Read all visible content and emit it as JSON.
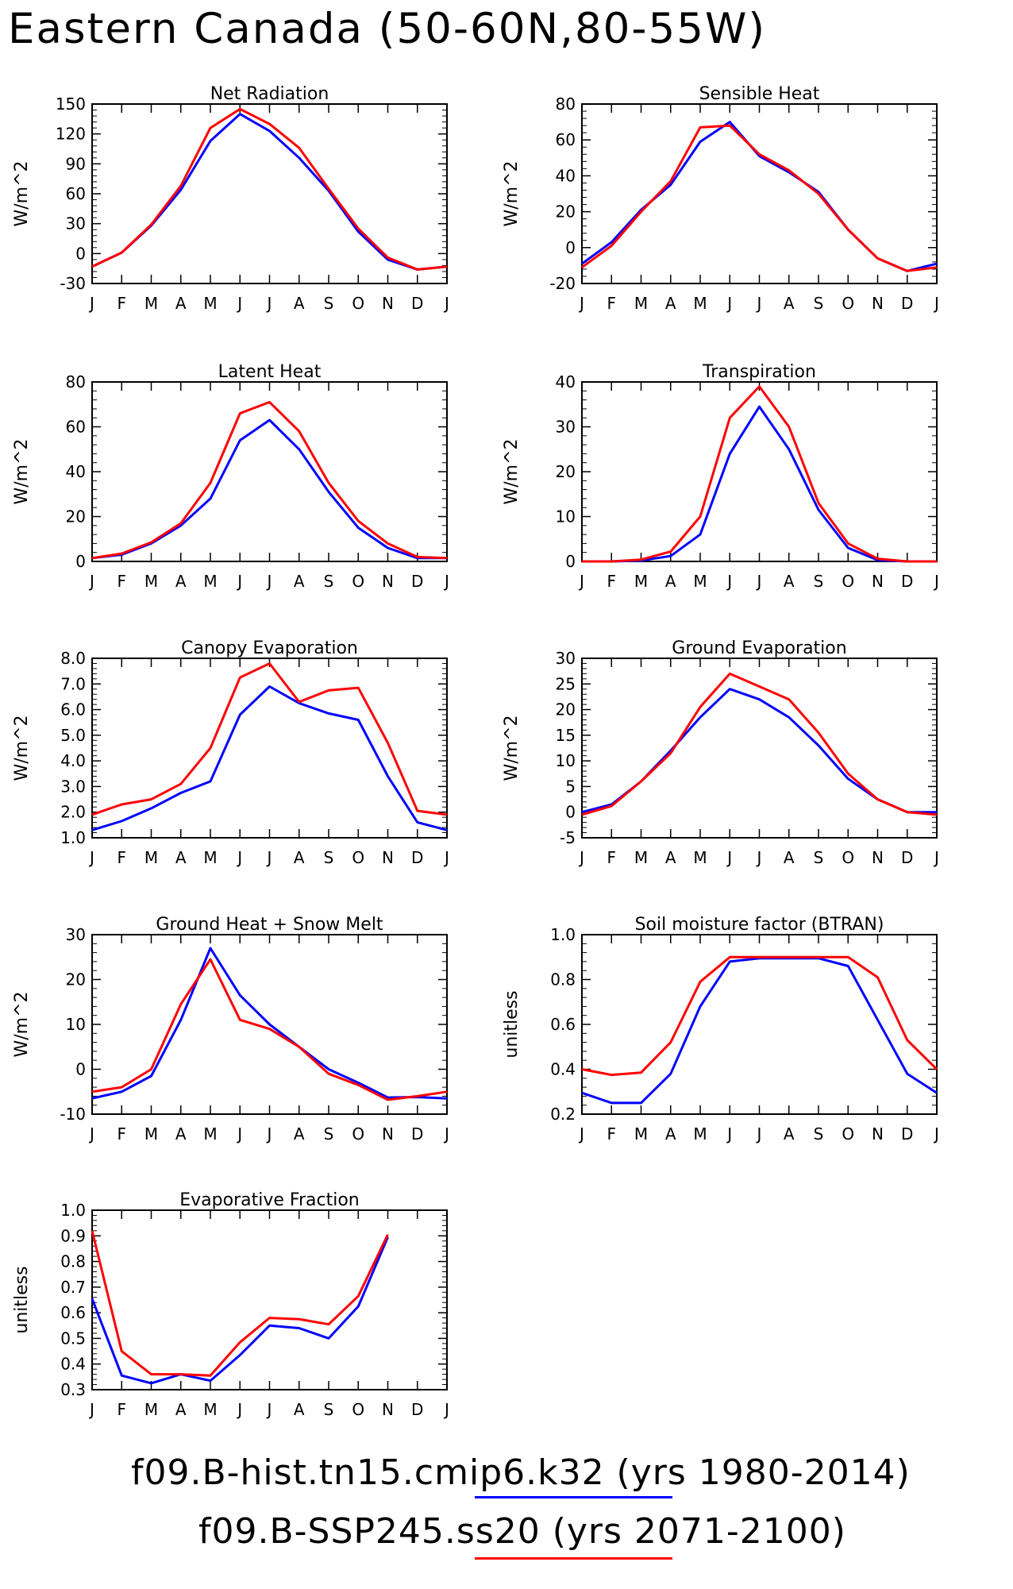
{
  "title": "Eastern Canada (50-60N,80-55W)",
  "months": [
    "J",
    "F",
    "M",
    "A",
    "M",
    "J",
    "J",
    "A",
    "S",
    "O",
    "N",
    "D",
    "J"
  ],
  "legend": [
    {
      "label": "f09.B-hist.tn15.cmip6.k32 (yrs 1980-2014)",
      "color": "#0000ff"
    },
    {
      "label": "f09.B-SSP245.ss20 (yrs 2071-2100)",
      "color": "#ff0000"
    }
  ],
  "chart_data": [
    {
      "type": "line",
      "title": "Net Radiation",
      "ylabel": "W/m^2",
      "ylim": [
        -30,
        150
      ],
      "yticks": [
        {
          "v": -30,
          "l": "-30"
        },
        {
          "v": 0,
          "l": "0"
        },
        {
          "v": 30,
          "l": "30"
        },
        {
          "v": 60,
          "l": "60"
        },
        {
          "v": 90,
          "l": "90"
        },
        {
          "v": 120,
          "l": "120"
        },
        {
          "v": 150,
          "l": "150"
        }
      ],
      "series": [
        {
          "name": "f09.B-hist.tn15.cmip6.k32 (yrs 1980-2014)",
          "color": "#0000ff",
          "values": [
            -13,
            1,
            28,
            64,
            113,
            140,
            123,
            96,
            63,
            22,
            -6,
            -16,
            -13
          ]
        },
        {
          "name": "f09.B-SSP245.ss20 (yrs 2071-2100)",
          "color": "#ff0000",
          "values": [
            -13,
            1,
            29,
            68,
            126,
            145,
            130,
            106,
            65,
            25,
            -4,
            -16,
            -13
          ]
        }
      ]
    },
    {
      "type": "line",
      "title": "Sensible Heat",
      "ylabel": "W/m^2",
      "ylim": [
        -20,
        80
      ],
      "yticks": [
        {
          "v": -20,
          "l": "-20"
        },
        {
          "v": 0,
          "l": "0"
        },
        {
          "v": 20,
          "l": "20"
        },
        {
          "v": 40,
          "l": "40"
        },
        {
          "v": 60,
          "l": "60"
        },
        {
          "v": 80,
          "l": "80"
        }
      ],
      "series": [
        {
          "name": "f09.B-hist.tn15.cmip6.k32 (yrs 1980-2014)",
          "color": "#0000ff",
          "values": [
            -9,
            3,
            21,
            35,
            59,
            70,
            51,
            42,
            31,
            10,
            -6,
            -13,
            -9
          ]
        },
        {
          "name": "f09.B-SSP245.ss20 (yrs 2071-2100)",
          "color": "#ff0000",
          "values": [
            -11,
            1,
            20,
            37,
            67,
            68,
            52,
            43,
            30,
            10,
            -6,
            -13,
            -11
          ]
        }
      ]
    },
    {
      "type": "line",
      "title": "Latent Heat",
      "ylabel": "W/m^2",
      "ylim": [
        0,
        80
      ],
      "yticks": [
        {
          "v": 0,
          "l": "0"
        },
        {
          "v": 20,
          "l": "20"
        },
        {
          "v": 40,
          "l": "40"
        },
        {
          "v": 60,
          "l": "60"
        },
        {
          "v": 80,
          "l": "80"
        }
      ],
      "series": [
        {
          "name": "f09.B-hist.tn15.cmip6.k32 (yrs 1980-2014)",
          "color": "#0000ff",
          "values": [
            1.5,
            3,
            8,
            16,
            28,
            54,
            63,
            50,
            31,
            15,
            6,
            1.5,
            1.5
          ]
        },
        {
          "name": "f09.B-SSP245.ss20 (yrs 2071-2100)",
          "color": "#ff0000",
          "values": [
            1.5,
            3.5,
            8.5,
            17,
            35,
            66,
            71,
            58,
            35,
            18,
            8,
            2,
            1.5
          ]
        }
      ]
    },
    {
      "type": "line",
      "title": "Transpiration",
      "ylabel": "W/m^2",
      "ylim": [
        0,
        40
      ],
      "yticks": [
        {
          "v": 0,
          "l": "0"
        },
        {
          "v": 10,
          "l": "10"
        },
        {
          "v": 20,
          "l": "20"
        },
        {
          "v": 30,
          "l": "30"
        },
        {
          "v": 40,
          "l": "40"
        }
      ],
      "series": [
        {
          "name": "f09.B-hist.tn15.cmip6.k32 (yrs 1980-2014)",
          "color": "#0000ff",
          "values": [
            0,
            0,
            0.2,
            1.2,
            6,
            24,
            34.5,
            25,
            11.5,
            3,
            0.3,
            0,
            0
          ]
        },
        {
          "name": "f09.B-SSP245.ss20 (yrs 2071-2100)",
          "color": "#ff0000",
          "values": [
            0,
            0,
            0.4,
            2.2,
            10,
            32,
            39,
            30,
            13,
            4,
            0.6,
            0,
            0
          ]
        }
      ]
    },
    {
      "type": "line",
      "title": "Canopy Evaporation",
      "ylabel": "W/m^2",
      "ylim": [
        1.0,
        8.0
      ],
      "yticks": [
        {
          "v": 1,
          "l": "1.0"
        },
        {
          "v": 2,
          "l": "2.0"
        },
        {
          "v": 3,
          "l": "3.0"
        },
        {
          "v": 4,
          "l": "4.0"
        },
        {
          "v": 5,
          "l": "5.0"
        },
        {
          "v": 6,
          "l": "6.0"
        },
        {
          "v": 7,
          "l": "7.0"
        },
        {
          "v": 8,
          "l": "8.0"
        }
      ],
      "series": [
        {
          "name": "f09.B-hist.tn15.cmip6.k32 (yrs 1980-2014)",
          "color": "#0000ff",
          "values": [
            1.3,
            1.65,
            2.15,
            2.75,
            3.2,
            5.8,
            6.9,
            6.25,
            5.85,
            5.6,
            3.4,
            1.6,
            1.3
          ]
        },
        {
          "name": "f09.B-SSP245.ss20 (yrs 2071-2100)",
          "color": "#ff0000",
          "values": [
            1.9,
            2.3,
            2.5,
            3.1,
            4.5,
            7.25,
            7.8,
            6.3,
            6.75,
            6.85,
            4.7,
            2.05,
            1.9
          ]
        }
      ]
    },
    {
      "type": "line",
      "title": "Ground Evaporation",
      "ylabel": "W/m^2",
      "ylim": [
        -5,
        30
      ],
      "yticks": [
        {
          "v": -5,
          "l": "-5"
        },
        {
          "v": 0,
          "l": "0"
        },
        {
          "v": 5,
          "l": "5"
        },
        {
          "v": 10,
          "l": "10"
        },
        {
          "v": 15,
          "l": "15"
        },
        {
          "v": 20,
          "l": "20"
        },
        {
          "v": 25,
          "l": "25"
        },
        {
          "v": 30,
          "l": "30"
        }
      ],
      "series": [
        {
          "name": "f09.B-hist.tn15.cmip6.k32 (yrs 1980-2014)",
          "color": "#0000ff",
          "values": [
            0,
            1.5,
            6,
            12,
            18.5,
            24,
            22,
            18.5,
            13,
            6.5,
            2.5,
            0,
            0
          ]
        },
        {
          "name": "f09.B-SSP245.ss20 (yrs 2071-2100)",
          "color": "#ff0000",
          "values": [
            -0.5,
            1.2,
            6,
            11.5,
            20.5,
            27,
            24.5,
            22,
            15.5,
            7.5,
            2.5,
            0,
            -0.5
          ]
        }
      ]
    },
    {
      "type": "line",
      "title": "Ground Heat + Snow Melt",
      "ylabel": "W/m^2",
      "ylim": [
        -10,
        30
      ],
      "yticks": [
        {
          "v": -10,
          "l": "-10"
        },
        {
          "v": 0,
          "l": "0"
        },
        {
          "v": 10,
          "l": "10"
        },
        {
          "v": 20,
          "l": "20"
        },
        {
          "v": 30,
          "l": "30"
        }
      ],
      "series": [
        {
          "name": "f09.B-hist.tn15.cmip6.k32 (yrs 1980-2014)",
          "color": "#0000ff",
          "values": [
            -6.5,
            -5,
            -1.5,
            11,
            27,
            16.5,
            10,
            5,
            0,
            -3,
            -6.3,
            -6.2,
            -6.5
          ]
        },
        {
          "name": "f09.B-SSP245.ss20 (yrs 2071-2100)",
          "color": "#ff0000",
          "values": [
            -5,
            -4,
            0,
            14.5,
            24.5,
            11,
            9,
            5,
            -1,
            -3.5,
            -6.8,
            -6,
            -5
          ]
        }
      ]
    },
    {
      "type": "line",
      "title": "Soil moisture factor (BTRAN)",
      "ylabel": "unitless",
      "ylim": [
        0.2,
        1.0
      ],
      "yticks": [
        {
          "v": 0.2,
          "l": "0.2"
        },
        {
          "v": 0.4,
          "l": "0.4"
        },
        {
          "v": 0.6,
          "l": "0.6"
        },
        {
          "v": 0.8,
          "l": "0.8"
        },
        {
          "v": 1.0,
          "l": "1.0"
        }
      ],
      "series": [
        {
          "name": "f09.B-hist.tn15.cmip6.k32 (yrs 1980-2014)",
          "color": "#0000ff",
          "values": [
            0.295,
            0.25,
            0.25,
            0.38,
            0.68,
            0.88,
            0.895,
            0.895,
            0.895,
            0.86,
            0.62,
            0.38,
            0.295
          ]
        },
        {
          "name": "f09.B-SSP245.ss20 (yrs 2071-2100)",
          "color": "#ff0000",
          "values": [
            0.4,
            0.375,
            0.385,
            0.52,
            0.79,
            0.9,
            0.9,
            0.9,
            0.9,
            0.9,
            0.81,
            0.53,
            0.4
          ]
        }
      ]
    },
    {
      "type": "line",
      "title": "Evaporative Fraction",
      "ylabel": "unitless",
      "ylim": [
        0.3,
        1.0
      ],
      "yticks": [
        {
          "v": 0.3,
          "l": "0.3"
        },
        {
          "v": 0.4,
          "l": "0.4"
        },
        {
          "v": 0.5,
          "l": "0.5"
        },
        {
          "v": 0.6,
          "l": "0.6"
        },
        {
          "v": 0.7,
          "l": "0.7"
        },
        {
          "v": 0.8,
          "l": "0.8"
        },
        {
          "v": 0.9,
          "l": "0.9"
        },
        {
          "v": 1.0,
          "l": "1.0"
        }
      ],
      "series": [
        {
          "name": "f09.B-hist.tn15.cmip6.k32 (yrs 1980-2014)",
          "color": "#0000ff",
          "values": [
            0.655,
            0.355,
            0.325,
            0.36,
            0.335,
            0.435,
            0.55,
            0.54,
            0.5,
            0.625,
            0.895,
            null,
            null
          ]
        },
        {
          "name": "f09.B-SSP245.ss20 (yrs 2071-2100)",
          "color": "#ff0000",
          "values": [
            0.92,
            0.45,
            0.36,
            0.36,
            0.355,
            0.485,
            0.58,
            0.575,
            0.555,
            0.665,
            0.905,
            null,
            null
          ]
        }
      ]
    }
  ]
}
